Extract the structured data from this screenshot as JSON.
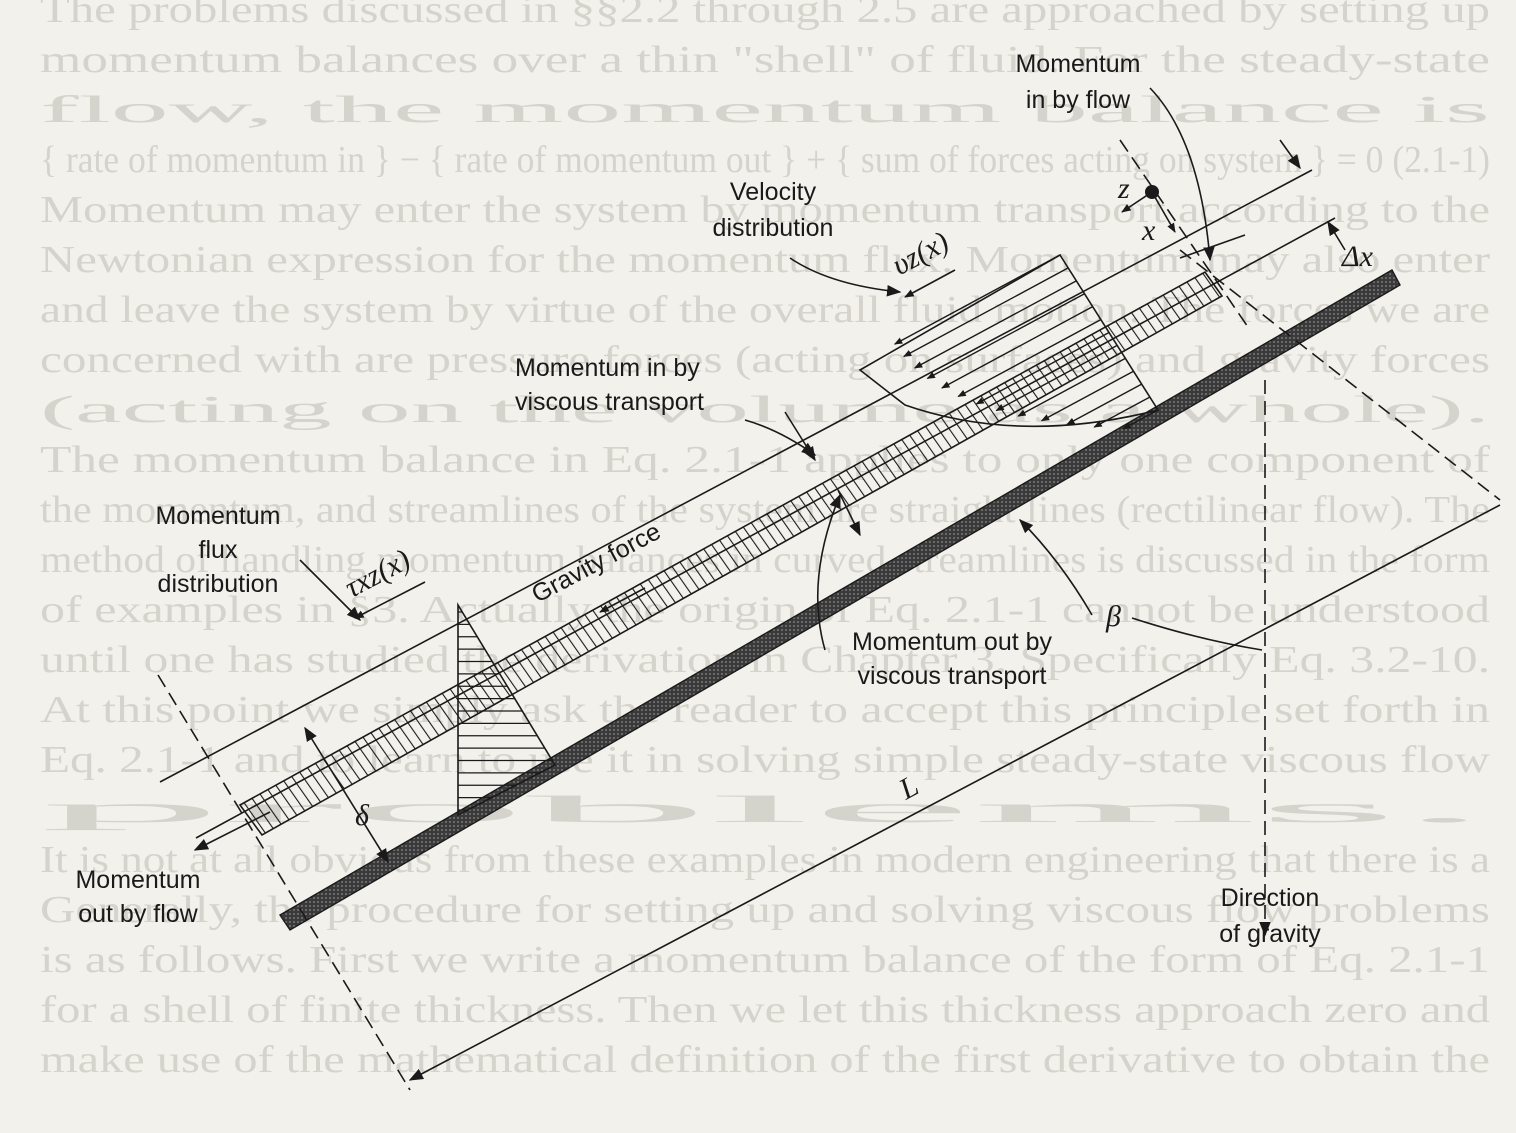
{
  "background_text": [
    "The problems discussed in §§2.2 through 2.5 are approached by setting up",
    "momentum balances over a thin \"shell\" of fluid. For the steady-state",
    "flow, the momentum balance is",
    "{ rate of momentum in } − { rate of momentum out } + { sum of forces acting on system } = 0   (2.1-1)",
    "Momentum may enter the system by momentum transport according to the",
    "Newtonian expression for the momentum flux. Momentum may also enter",
    "and leave the system by virtue of the overall fluid motion. The forces we are",
    "concerned with are pressure forces (acting on surfaces) and gravity forces",
    "(acting on the volume as a whole).",
    "The momentum balance in Eq. 2.1-1 applies to only one component of",
    "the momentum, and streamlines of the system are straight lines (rectilinear flow). The",
    "method of handling momentum balances in curved streamlines is discussed in the form",
    "of examples in §3. Actually the origin of Eq. 2.1-1 cannot be understood",
    "until one has studied the derivation in Chapter 3. Specifically Eq. 3.2-10.",
    "At this point we simply ask the reader to accept this principle set forth in",
    "Eq. 2.1-1 and to learn to use it in solving simple steady-state viscous flow",
    "problems.",
    "It is not at all obvious from these examples in modern engineering that there is a",
    "Generally, the procedure for setting up and solving viscous flow problems",
    "is as follows. First we write a momentum balance of the form of Eq. 2.1-1",
    "for a shell of finite thickness. Then we let this thickness approach zero and",
    "make use of the mathematical definition of the first derivative to obtain the"
  ],
  "labels": {
    "momentum_in_flow": [
      "Momentum",
      "in by flow"
    ],
    "velocity_dist": [
      "Velocity",
      "distribution"
    ],
    "momentum_in_viscous": [
      "Momentum in by",
      "viscous transport"
    ],
    "momentum_flux_dist": [
      "Momentum",
      "flux",
      "distribution"
    ],
    "gravity_force": "Gravity force",
    "momentum_out_viscous": [
      "Momentum out by",
      "viscous transport"
    ],
    "momentum_out_flow": [
      "Momentum",
      "out by flow"
    ],
    "direction_gravity": [
      "Direction",
      "of gravity"
    ]
  },
  "symbols": {
    "vz": "υz(x)",
    "txz": "τxz(x)",
    "z": "z",
    "x": "x",
    "dx": "Δx",
    "beta": "β",
    "L": "L",
    "delta": "δ"
  },
  "colors": {
    "ink": "#1a1a1a",
    "paper": "#f2f1ec",
    "faint_text": "#d4d3cc"
  }
}
